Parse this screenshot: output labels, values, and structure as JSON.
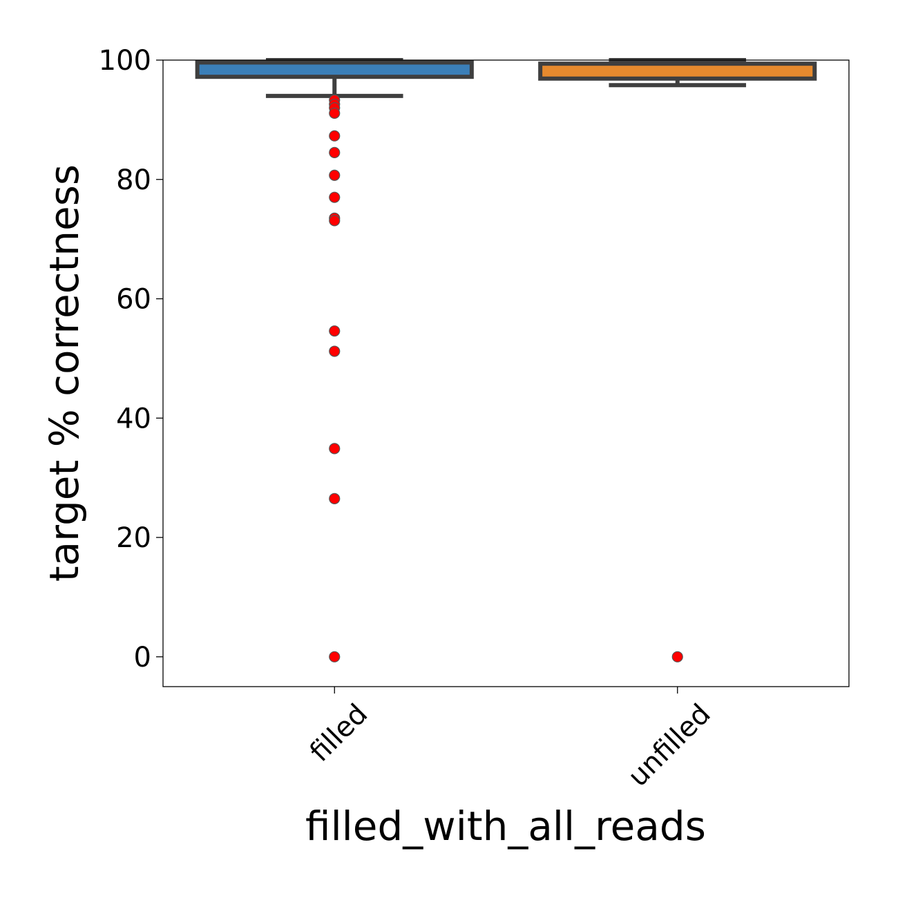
{
  "chart_data": {
    "type": "box",
    "xlabel": "filled_with_all_reads",
    "ylabel": "target % correctness",
    "ylim": [
      -5,
      100
    ],
    "yticks": [
      0,
      20,
      40,
      60,
      80,
      100
    ],
    "grid": false,
    "categories": [
      "filled",
      "unfilled"
    ],
    "boxes": [
      {
        "category": "filled",
        "q1": 97.2,
        "median": 98.4,
        "q3": 99.6,
        "whisker_low": 94.0,
        "whisker_high": 100,
        "fliers": [
          93.3,
          92.6,
          92.0,
          91.1,
          87.3,
          84.5,
          80.7,
          77.0,
          73.5,
          73.1,
          54.6,
          51.2,
          34.9,
          26.5,
          0.0
        ],
        "color": "#3b7fb8"
      },
      {
        "category": "unfilled",
        "q1": 96.9,
        "median": 97.8,
        "q3": 99.4,
        "whisker_low": 95.8,
        "whisker_high": 100,
        "fliers": [
          0.0
        ],
        "color": "#e68a2e"
      }
    ],
    "flier_color": "#ff0000",
    "edge_color": "#3f3f3f"
  }
}
